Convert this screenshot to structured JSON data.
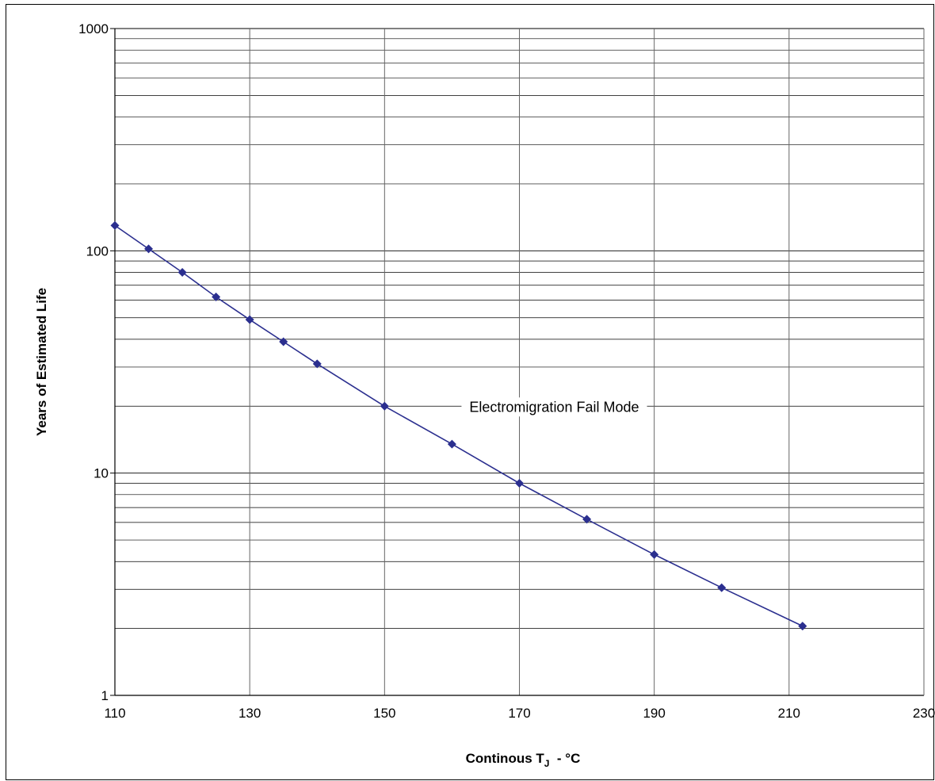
{
  "chart_data": {
    "type": "line",
    "title": "",
    "xlabel_main": "Continous T",
    "xlabel_sub": "J",
    "xlabel_unit": "  - °C",
    "ylabel": "Years of Estimated Life",
    "annotation": "Electromigration Fail Mode",
    "xlim": [
      110,
      230
    ],
    "ylim": [
      1,
      1000
    ],
    "y_scale": "log",
    "grid": true,
    "x_ticks": [
      "110",
      "130",
      "150",
      "170",
      "190",
      "210",
      "230"
    ],
    "y_ticks": [
      "1",
      "10",
      "100",
      "1000"
    ],
    "series": [
      {
        "color": "#2b2f8f",
        "marker": "diamond",
        "x": [
          110,
          115,
          120,
          125,
          130,
          135,
          140,
          150,
          160,
          170,
          180,
          190,
          200,
          212
        ],
        "y": [
          130,
          102,
          80,
          62,
          49,
          39,
          31,
          20,
          13.5,
          9,
          6.2,
          4.3,
          3.05,
          2.05
        ]
      }
    ]
  }
}
